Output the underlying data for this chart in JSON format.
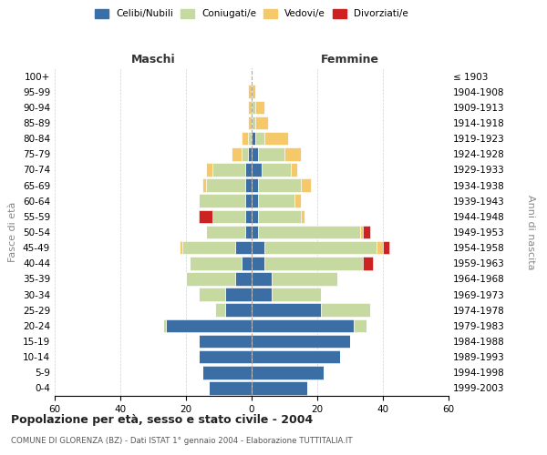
{
  "age_groups_bottom_to_top": [
    "0-4",
    "5-9",
    "10-14",
    "15-19",
    "20-24",
    "25-29",
    "30-34",
    "35-39",
    "40-44",
    "45-49",
    "50-54",
    "55-59",
    "60-64",
    "65-69",
    "70-74",
    "75-79",
    "80-84",
    "85-89",
    "90-94",
    "95-99",
    "100+"
  ],
  "birth_years_bottom_to_top": [
    "1999-2003",
    "1994-1998",
    "1989-1993",
    "1984-1988",
    "1979-1983",
    "1974-1978",
    "1969-1973",
    "1964-1968",
    "1959-1963",
    "1954-1958",
    "1949-1953",
    "1944-1948",
    "1939-1943",
    "1934-1938",
    "1929-1933",
    "1924-1928",
    "1919-1923",
    "1914-1918",
    "1909-1913",
    "1904-1908",
    "≤ 1903"
  ],
  "colors": {
    "celibi": "#3a6ea5",
    "coniugati": "#c5d9a0",
    "vedovi": "#f5c96a",
    "divorziati": "#cc2222"
  },
  "maschi": {
    "celibi": [
      13,
      15,
      16,
      16,
      26,
      8,
      8,
      5,
      3,
      5,
      2,
      2,
      2,
      2,
      2,
      1,
      0,
      0,
      0,
      0,
      0
    ],
    "coniugati": [
      0,
      0,
      0,
      0,
      1,
      3,
      8,
      15,
      16,
      16,
      12,
      10,
      14,
      12,
      10,
      2,
      1,
      0,
      0,
      0,
      0
    ],
    "vedovi": [
      0,
      0,
      0,
      0,
      0,
      0,
      0,
      0,
      0,
      1,
      0,
      0,
      0,
      1,
      2,
      3,
      2,
      1,
      1,
      1,
      0
    ],
    "divorziati": [
      0,
      0,
      0,
      0,
      0,
      0,
      0,
      0,
      0,
      0,
      0,
      4,
      0,
      0,
      0,
      0,
      0,
      0,
      0,
      0,
      0
    ]
  },
  "femmine": {
    "celibi": [
      17,
      22,
      27,
      30,
      31,
      21,
      6,
      6,
      4,
      4,
      2,
      2,
      2,
      2,
      3,
      2,
      1,
      0,
      0,
      0,
      0
    ],
    "coniugati": [
      0,
      0,
      0,
      0,
      4,
      15,
      15,
      20,
      30,
      34,
      31,
      13,
      11,
      13,
      9,
      8,
      3,
      1,
      1,
      0,
      0
    ],
    "vedovi": [
      0,
      0,
      0,
      0,
      0,
      0,
      0,
      0,
      0,
      2,
      1,
      1,
      2,
      3,
      2,
      5,
      7,
      4,
      3,
      1,
      0
    ],
    "divorziati": [
      0,
      0,
      0,
      0,
      0,
      0,
      0,
      0,
      3,
      2,
      2,
      0,
      0,
      0,
      0,
      0,
      0,
      0,
      0,
      0,
      0
    ]
  },
  "xlim": 60,
  "title": "Popolazione per età, sesso e stato civile - 2004",
  "subtitle": "COMUNE DI GLORENZA (BZ) - Dati ISTAT 1° gennaio 2004 - Elaborazione TUTTITALIA.IT",
  "ylabel_left": "Fasce di età",
  "ylabel_right": "Anni di nascita",
  "label_maschi": "Maschi",
  "label_femmine": "Femmine",
  "legend_labels": [
    "Celibi/Nubili",
    "Coniugati/e",
    "Vedovi/e",
    "Divorziati/e"
  ],
  "bg_color": "#ffffff",
  "grid_color": "#cccccc"
}
